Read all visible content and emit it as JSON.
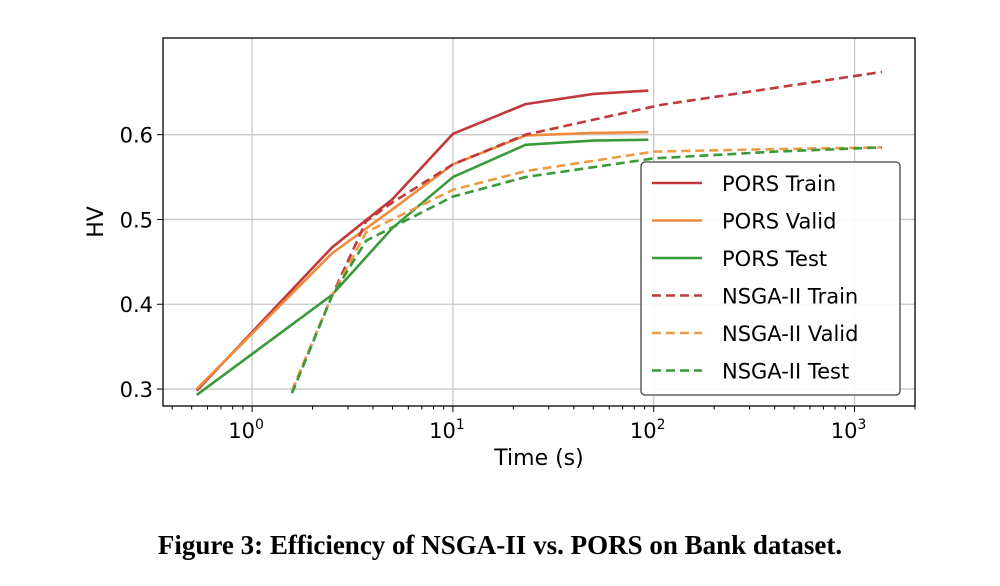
{
  "chart_data": {
    "type": "line",
    "xlabel": "Time (s)",
    "ylabel": "HV",
    "xscale": "log",
    "xlim": [
      0.36,
      2000
    ],
    "ylim": [
      0.28,
      0.714
    ],
    "xticks": [
      {
        "v": 1,
        "base": "10",
        "exp": "0"
      },
      {
        "v": 10,
        "base": "10",
        "exp": "1"
      },
      {
        "v": 100,
        "base": "10",
        "exp": "2"
      },
      {
        "v": 1000,
        "base": "10",
        "exp": "3"
      }
    ],
    "yticks": [
      {
        "v": 0.3,
        "label": "0.3"
      },
      {
        "v": 0.4,
        "label": "0.4"
      },
      {
        "v": 0.5,
        "label": "0.5"
      },
      {
        "v": 0.6,
        "label": "0.6"
      }
    ],
    "grid": true,
    "legend_position": "lower-right",
    "series": [
      {
        "name": "PORS Train",
        "color": "#c0393b",
        "dash": false,
        "x": [
          0.53,
          2.5,
          5,
          10,
          23,
          50,
          94
        ],
        "y": [
          0.298,
          0.467,
          0.524,
          0.601,
          0.636,
          0.648,
          0.652
        ]
      },
      {
        "name": "PORS Valid",
        "color": "#ee8a3c",
        "dash": false,
        "x": [
          0.53,
          2.5,
          5,
          10,
          23,
          50,
          94
        ],
        "y": [
          0.3,
          0.46,
          0.512,
          0.565,
          0.599,
          0.602,
          0.603
        ]
      },
      {
        "name": "PORS Test",
        "color": "#3a9a3a",
        "dash": false,
        "x": [
          0.53,
          2.5,
          5,
          10,
          23,
          50,
          94
        ],
        "y": [
          0.293,
          0.411,
          0.49,
          0.55,
          0.588,
          0.593,
          0.594
        ]
      },
      {
        "name": "NSGA-II Train",
        "color": "#c0393b",
        "dash": true,
        "x": [
          1.58,
          2.5,
          3.7,
          5,
          10,
          23,
          108,
          1370
        ],
        "y": [
          0.298,
          0.41,
          0.498,
          0.52,
          0.565,
          0.6,
          0.635,
          0.674
        ]
      },
      {
        "name": "NSGA-II Valid",
        "color": "#ee9a44",
        "dash": true,
        "x": [
          1.58,
          2.5,
          3.7,
          10,
          23,
          100,
          400,
          1370
        ],
        "y": [
          0.298,
          0.41,
          0.485,
          0.535,
          0.557,
          0.58,
          0.583,
          0.585
        ]
      },
      {
        "name": "NSGA-II Test",
        "color": "#3a9a3a",
        "dash": true,
        "x": [
          1.58,
          2.5,
          3.7,
          10,
          23,
          100,
          400,
          1370
        ],
        "y": [
          0.295,
          0.41,
          0.475,
          0.527,
          0.55,
          0.572,
          0.58,
          0.585
        ]
      }
    ]
  },
  "caption": "Figure 3: Efficiency of NSGA-II vs. PORS on Bank dataset."
}
